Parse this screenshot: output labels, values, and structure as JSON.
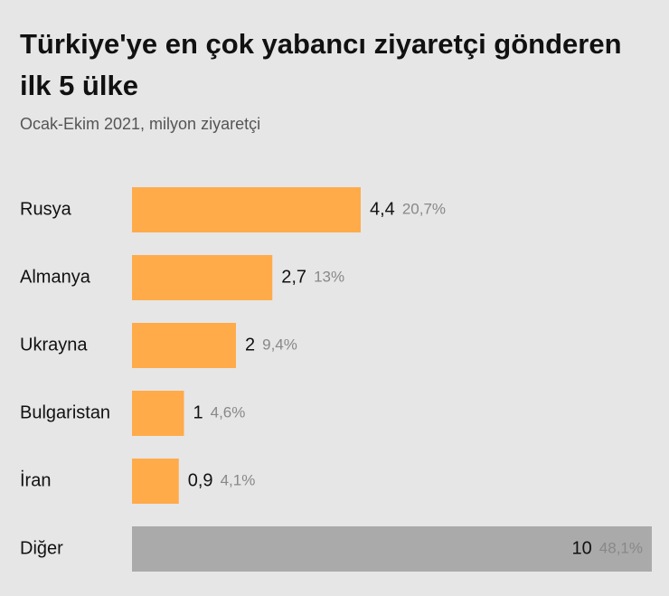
{
  "chart_data": {
    "type": "hbar",
    "title": "Türkiye'ye en çok yabancı ziyaretçi gönderen ilk 5 ülke",
    "subtitle": "Ocak-Ekim 2021, milyon ziyaretçi",
    "categories": [
      "Rusya",
      "Almanya",
      "Ukrayna",
      "Bulgaristan",
      "İran",
      "Diğer"
    ],
    "values": [
      4.4,
      2.7,
      2,
      1,
      0.9,
      10
    ],
    "value_labels": [
      "4,4",
      "2,7",
      "2",
      "1",
      "0,9",
      "10"
    ],
    "shares": [
      20.7,
      13,
      9.4,
      4.6,
      4.1,
      48.1
    ],
    "share_labels": [
      "20,7%",
      "13%",
      "9,4%",
      "4,6%",
      "4,1%",
      "48,1%"
    ],
    "colors": [
      "#ffab4a",
      "#ffab4a",
      "#ffab4a",
      "#ffab4a",
      "#ffab4a",
      "#aaaaaa"
    ]
  }
}
